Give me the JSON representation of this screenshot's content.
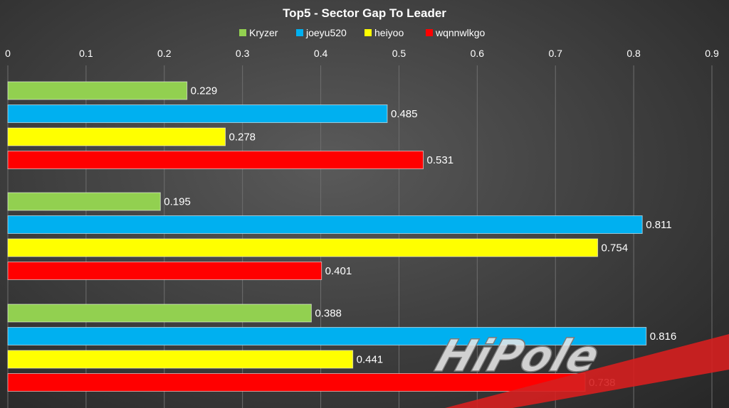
{
  "chart_data": {
    "type": "bar",
    "orientation": "horizontal",
    "title": "Top5 - Sector Gap To Leader",
    "xlabel": "",
    "ylabel": "",
    "xlim": [
      0,
      0.9
    ],
    "x_ticks": [
      "0",
      "0.1",
      "0.2",
      "0.3",
      "0.4",
      "0.5",
      "0.6",
      "0.7",
      "0.8",
      "0.9"
    ],
    "x_axis_position": "top",
    "grid": true,
    "legend_position": "top",
    "categories": [
      "",
      "",
      ""
    ],
    "series": [
      {
        "name": "Kryzer",
        "color": "#92d050",
        "values": [
          0.229,
          0.195,
          0.388
        ],
        "labels": [
          "0.229",
          "0.195",
          "0.388"
        ]
      },
      {
        "name": "joeyu520",
        "color": "#00b0f0",
        "values": [
          0.485,
          0.811,
          0.816
        ],
        "labels": [
          "0.485",
          "0.811",
          "0.816"
        ]
      },
      {
        "name": "heiyoo",
        "color": "#ffff00",
        "values": [
          0.278,
          0.754,
          0.441
        ],
        "labels": [
          "0.278",
          "0.754",
          "0.441"
        ]
      },
      {
        "name": "wqnnwlkgo",
        "color": "#ff0000",
        "values": [
          0.531,
          0.401,
          0.738
        ],
        "labels": [
          "0.531",
          "0.401",
          "0.738"
        ]
      }
    ]
  },
  "watermark": {
    "text": "HiPole"
  }
}
